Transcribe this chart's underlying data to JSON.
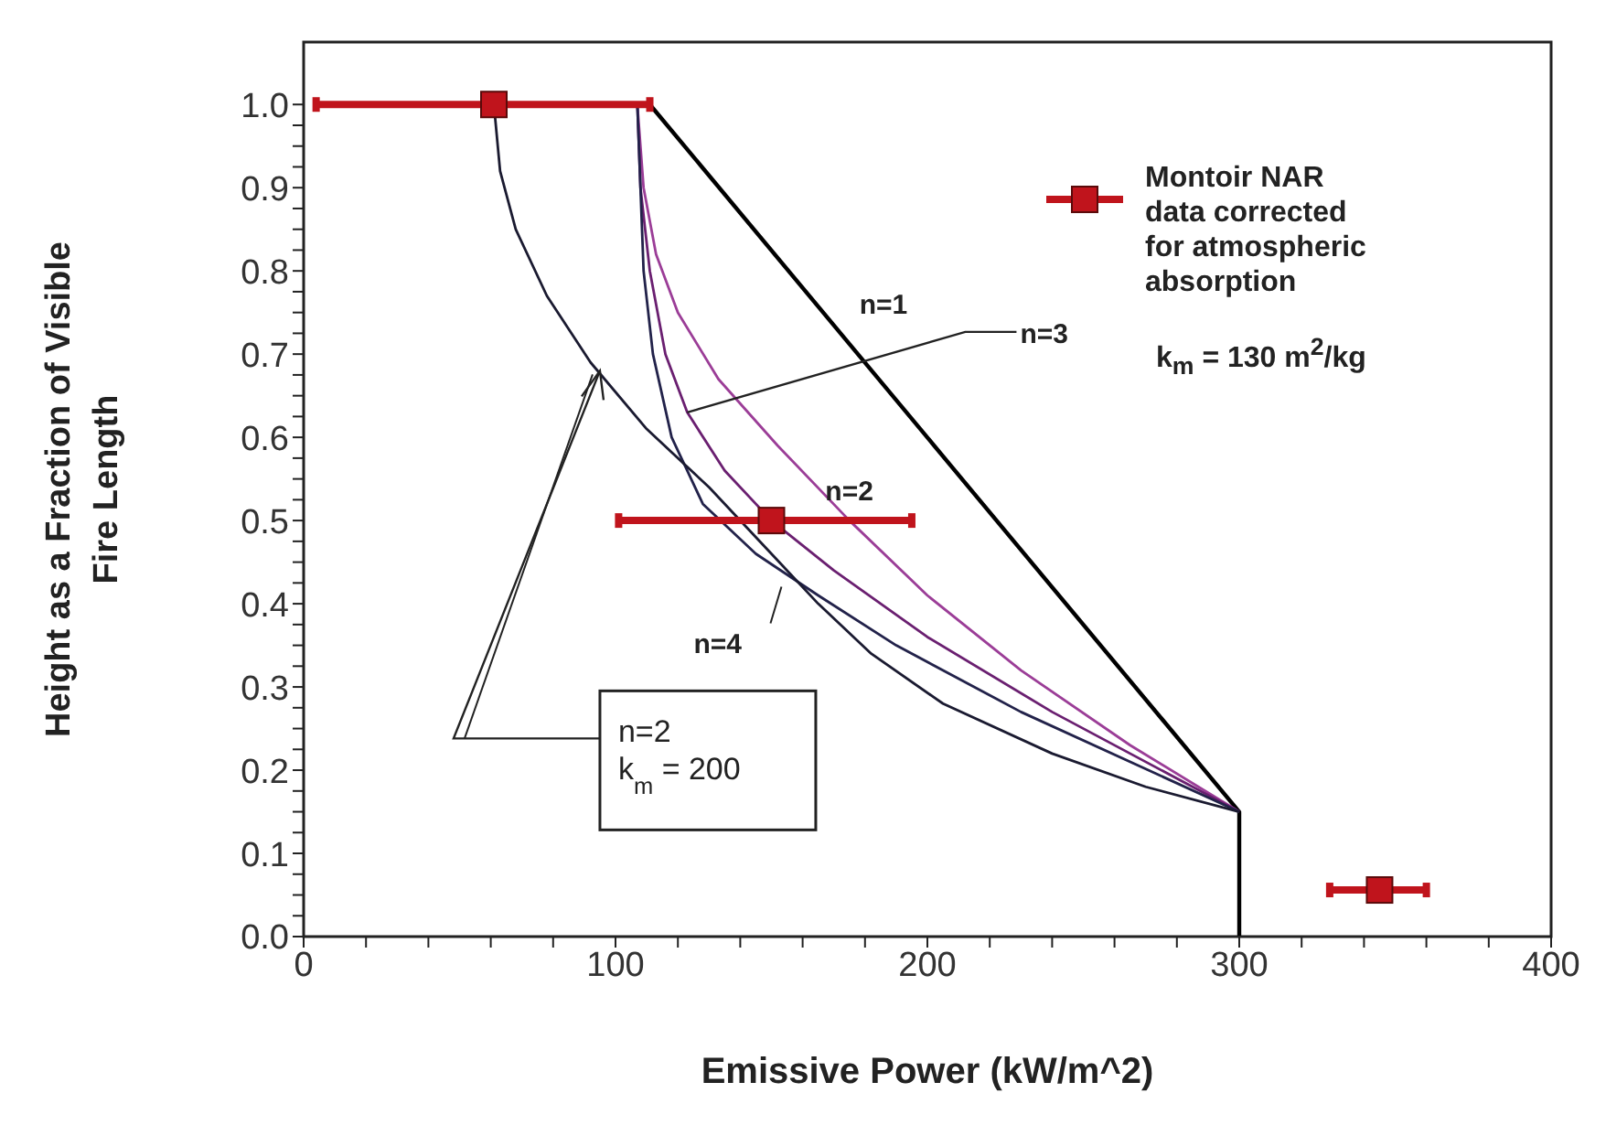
{
  "chart_data": {
    "type": "line",
    "xlabel": "Emissive Power (kW/m^2)",
    "ylabel": "Height as a Fraction of Visible\nFire Length",
    "xlim": [
      0,
      400
    ],
    "ylim": [
      0,
      1.075
    ],
    "xticks": [
      0,
      {
        "value": 20,
        "label": null
      },
      {
        "value": 40,
        "label": null
      },
      {
        "value": 60,
        "label": null
      },
      {
        "value": 80,
        "label": null
      },
      100,
      {
        "value": 120,
        "label": null
      },
      {
        "value": 140,
        "label": null
      },
      {
        "value": 160,
        "label": null
      },
      {
        "value": 180,
        "label": null
      },
      200,
      {
        "value": 220,
        "label": null
      },
      {
        "value": 240,
        "label": null
      },
      {
        "value": 260,
        "label": null
      },
      {
        "value": 280,
        "label": null
      },
      300,
      {
        "value": 320,
        "label": null
      },
      {
        "value": 340,
        "label": null
      },
      {
        "value": 360,
        "label": null
      },
      {
        "value": 380,
        "label": null
      },
      400
    ],
    "yticks": [
      {
        "value": 0,
        "label": "0.0"
      },
      {
        "value": 0.025,
        "label": null
      },
      {
        "value": 0.05,
        "label": null
      },
      {
        "value": 0.075,
        "label": null
      },
      {
        "value": 0.1,
        "label": "0.1"
      },
      {
        "value": 0.125,
        "label": null
      },
      {
        "value": 0.15,
        "label": null
      },
      {
        "value": 0.175,
        "label": null
      },
      {
        "value": 0.2,
        "label": "0.2"
      },
      {
        "value": 0.225,
        "label": null
      },
      {
        "value": 0.25,
        "label": null
      },
      {
        "value": 0.275,
        "label": null
      },
      {
        "value": 0.3,
        "label": "0.3"
      },
      {
        "value": 0.325,
        "label": null
      },
      {
        "value": 0.35,
        "label": null
      },
      {
        "value": 0.375,
        "label": null
      },
      {
        "value": 0.4,
        "label": "0.4"
      },
      {
        "value": 0.425,
        "label": null
      },
      {
        "value": 0.45,
        "label": null
      },
      {
        "value": 0.475,
        "label": null
      },
      {
        "value": 0.5,
        "label": "0.5"
      },
      {
        "value": 0.525,
        "label": null
      },
      {
        "value": 0.55,
        "label": null
      },
      {
        "value": 0.575,
        "label": null
      },
      {
        "value": 0.6,
        "label": "0.6"
      },
      {
        "value": 0.625,
        "label": null
      },
      {
        "value": 0.65,
        "label": null
      },
      {
        "value": 0.675,
        "label": null
      },
      {
        "value": 0.7,
        "label": "0.7"
      },
      {
        "value": 0.725,
        "label": null
      },
      {
        "value": 0.75,
        "label": null
      },
      {
        "value": 0.775,
        "label": null
      },
      {
        "value": 0.8,
        "label": "0.8"
      },
      {
        "value": 0.825,
        "label": null
      },
      {
        "value": 0.85,
        "label": null
      },
      {
        "value": 0.875,
        "label": null
      },
      {
        "value": 0.9,
        "label": "0.9"
      },
      {
        "value": 0.925,
        "label": null
      },
      {
        "value": 0.95,
        "label": null
      },
      {
        "value": 0.975,
        "label": null
      },
      {
        "value": 1.0,
        "label": "1.0"
      }
    ],
    "legend": "top right",
    "series": [
      {
        "color": "#000000",
        "x": [
          111,
          300,
          300
        ],
        "values": [
          1.0,
          0.15,
          0
        ]
      },
      {
        "color": "#9b3d97",
        "x": [
          107,
          109,
          113,
          120,
          133,
          152,
          175,
          200,
          230,
          265,
          300
        ],
        "values": [
          1.0,
          0.9,
          0.82,
          0.75,
          0.67,
          0.59,
          0.5,
          0.41,
          0.32,
          0.23,
          0.15
        ]
      },
      {
        "color": "#6a1f70",
        "x": [
          107,
          108,
          111,
          116,
          123,
          135,
          150,
          170,
          200,
          240,
          300
        ],
        "values": [
          1.0,
          0.9,
          0.8,
          0.7,
          0.63,
          0.56,
          0.5,
          0.44,
          0.36,
          0.27,
          0.15
        ]
      },
      {
        "color": "#22224a",
        "x": [
          107,
          108,
          109,
          112,
          118,
          128,
          145,
          165,
          190,
          230,
          300
        ],
        "values": [
          1.0,
          0.9,
          0.8,
          0.7,
          0.6,
          0.52,
          0.46,
          0.41,
          0.35,
          0.27,
          0.15
        ]
      },
      {
        "color": "#1a1a30",
        "x": [
          61,
          63,
          68,
          78,
          92,
          110,
          130,
          150,
          165,
          182,
          205,
          240,
          270,
          300
        ],
        "values": [
          1.0,
          0.92,
          0.85,
          0.77,
          0.69,
          0.61,
          0.54,
          0.46,
          0.4,
          0.34,
          0.28,
          0.22,
          0.18,
          0.15
        ]
      },
      {
        "type": "scatter",
        "name": "Montoir NAR\ndata corrected\nfor atmospheric\nabsorption",
        "color": "#c0141c",
        "marker": "square",
        "x": [
          61,
          150,
          345
        ],
        "values": [
          1.0,
          0.5,
          0.056
        ],
        "xerrors": [
          [
            4,
            111
          ],
          [
            101,
            195
          ],
          [
            329,
            360
          ]
        ]
      }
    ],
    "annotations": [
      {
        "text": "n=1",
        "x": 170,
        "y": 0.74
      },
      {
        "text": "n=3",
        "x": 123,
        "y": 0.63
      },
      {
        "text": "n=2",
        "x": 152,
        "y": 0.59
      },
      {
        "text": "n=4",
        "x": 145,
        "y": 0.46
      },
      {
        "text": "n=2\nk$_{m}$ = 200",
        "x": 95,
        "y": 0.68
      },
      "k$_{m}$ = 130 m$^{2}$/kg"
    ]
  }
}
